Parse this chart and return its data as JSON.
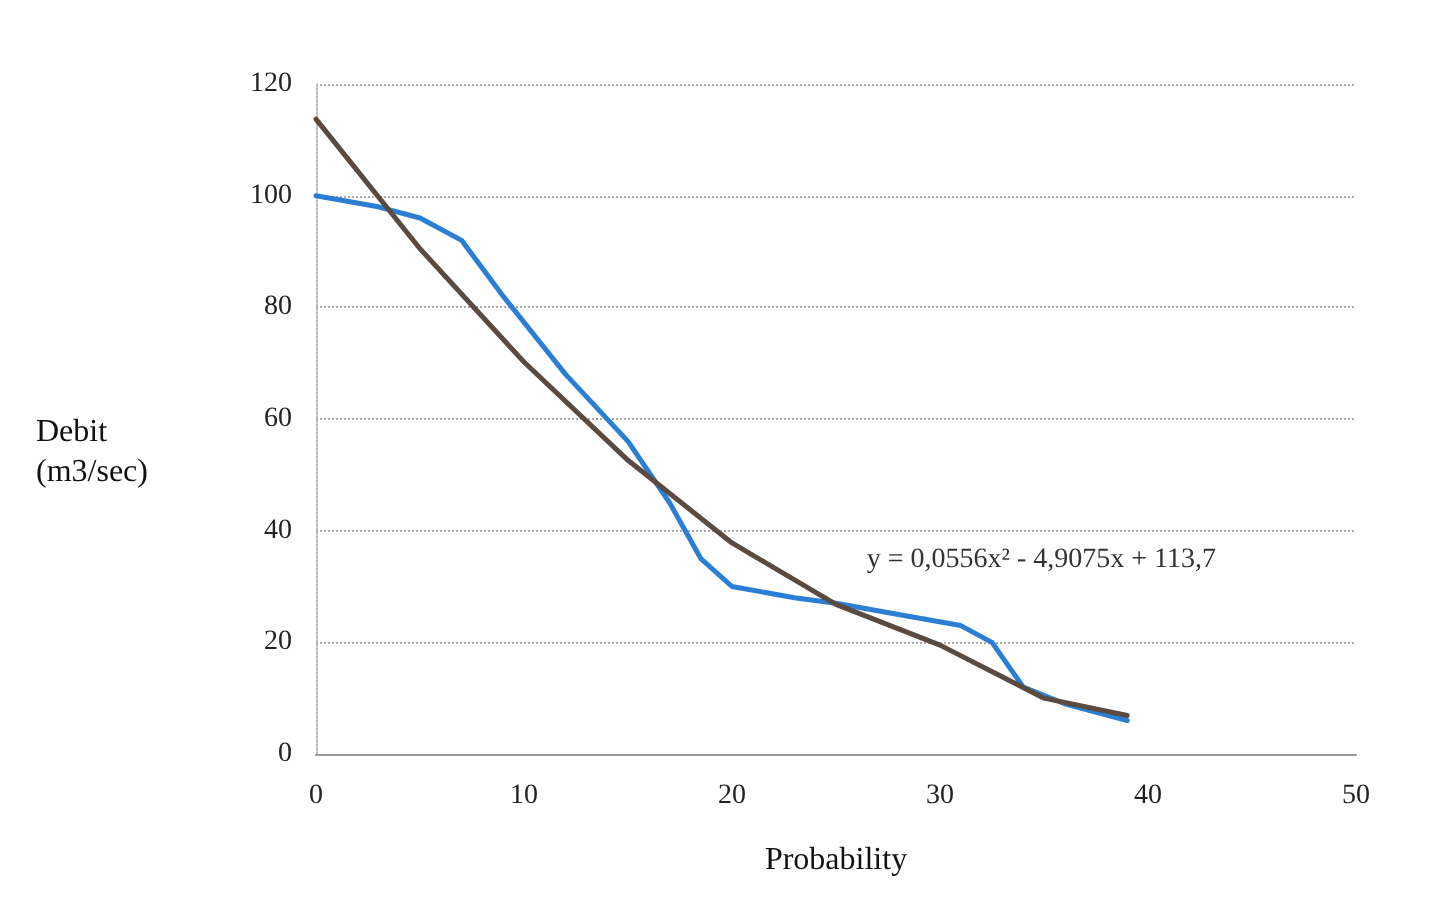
{
  "chart_data": {
    "type": "line",
    "xlabel": "Probability",
    "ylabel": "Debit\n(m3/sec)",
    "xlim": [
      0,
      50
    ],
    "xticks": [
      0,
      10,
      20,
      30,
      40,
      50
    ],
    "ylim": [
      0,
      120
    ],
    "yticks": [
      0,
      20,
      40,
      60,
      80,
      100,
      120
    ],
    "grid": "y",
    "marker": "none",
    "line_style": "solid",
    "annotations": [
      "y = 0,0556x² - 4,9075x + 113,7"
    ],
    "series": [
      {
        "color": "#2a7fd4",
        "x": [
          0,
          3,
          5,
          7,
          9,
          12,
          15,
          17,
          18.5,
          20,
          23,
          25,
          28,
          31,
          32.5,
          34,
          36,
          39
        ],
        "values": [
          100,
          98,
          96,
          92,
          82,
          68,
          56,
          45,
          35,
          30,
          28,
          27,
          25,
          23,
          20,
          12,
          9,
          6
        ]
      },
      {
        "color": "#5a4a40",
        "x": [
          0,
          5,
          10,
          15,
          20,
          25,
          30,
          35,
          39
        ],
        "values": [
          113.7,
          90.5,
          70.2,
          52.6,
          37.8,
          26.8,
          19.5,
          10,
          6.9
        ]
      }
    ]
  }
}
